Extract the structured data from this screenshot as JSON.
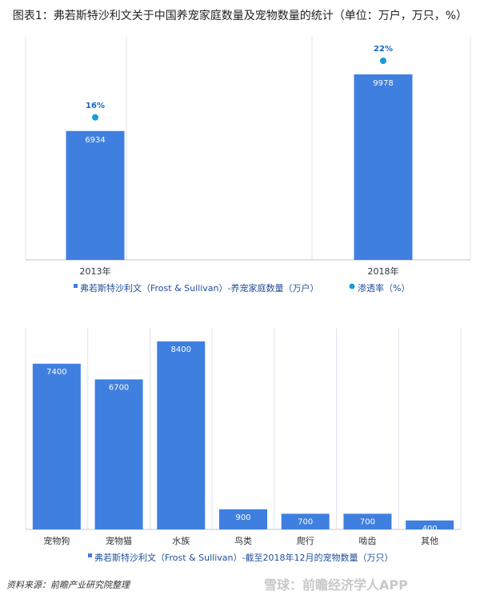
{
  "title": "图表1：弗若斯特沙利文关于中国养宠家庭数量及宠物数量的统计（单位：万户，万只，%）",
  "chart_data": [
    {
      "type": "bar",
      "categories": [
        "2013年",
        "2018年"
      ],
      "series": [
        {
          "name": "弗若斯特沙利文（Frost & Sullivan）-养宠家庭数量（万户）",
          "values": [
            6934,
            9978
          ],
          "color": "#3f7fe0"
        },
        {
          "name": "渗透率（%）",
          "type": "scatter",
          "values": [
            16,
            22
          ],
          "value_labels": [
            "16%",
            "22%"
          ],
          "color": "#1a9bd7"
        }
      ],
      "legend": [
        "弗若斯特沙利文（Frost & Sullivan）-养宠家庭数量（万户）",
        "渗透率（%）"
      ],
      "legend_position": "bottom"
    },
    {
      "type": "bar",
      "categories": [
        "宠物狗",
        "宠物猫",
        "水族",
        "鸟类",
        "爬行",
        "啮齿",
        "其他"
      ],
      "series": [
        {
          "name": "弗若斯特沙利文（Frost & Sullivan）-截至2018年12月的宠物数量（万只）",
          "values": [
            7400,
            6700,
            8400,
            900,
            700,
            700,
            400
          ],
          "color": "#3f7fe0"
        }
      ],
      "legend": [
        "弗若斯特沙利文（Frost & Sullivan）-截至2018年12月的宠物数量（万只）"
      ],
      "legend_position": "bottom"
    }
  ],
  "source": "资料来源：前瞻产业研究院整理",
  "watermark": "雪球：前瞻经济学人APP"
}
